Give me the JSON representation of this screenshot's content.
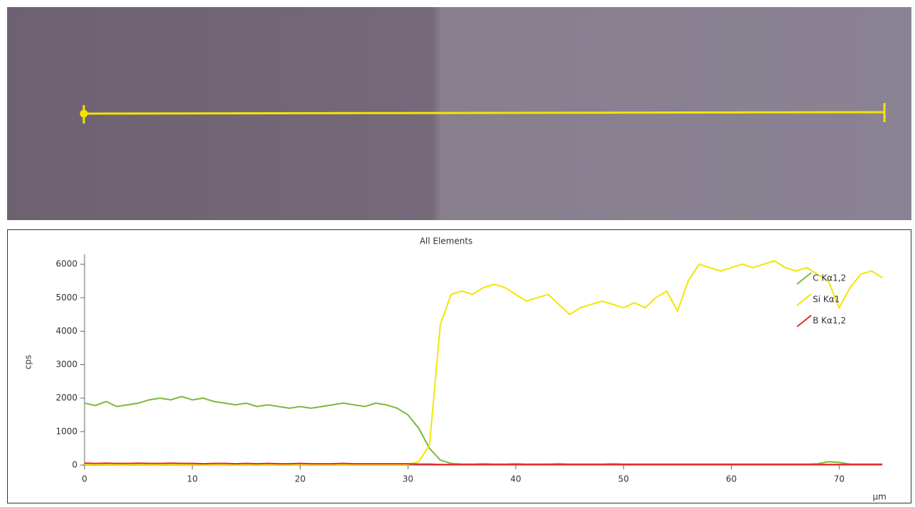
{
  "chart_data": {
    "type": "line",
    "title": "All Elements",
    "x_label": "µm",
    "y_label": "cps",
    "x": [
      0,
      1,
      2,
      3,
      4,
      5,
      6,
      7,
      8,
      9,
      10,
      11,
      12,
      13,
      14,
      15,
      16,
      17,
      18,
      19,
      20,
      21,
      22,
      23,
      24,
      25,
      26,
      27,
      28,
      29,
      30,
      31,
      32,
      33,
      34,
      35,
      36,
      37,
      38,
      39,
      40,
      41,
      42,
      43,
      44,
      45,
      46,
      47,
      48,
      49,
      50,
      51,
      52,
      53,
      54,
      55,
      56,
      57,
      58,
      59,
      60,
      61,
      62,
      63,
      64,
      65,
      66,
      67,
      68,
      69,
      70,
      71,
      72,
      73,
      74
    ],
    "series": [
      {
        "name": "C Kα1,2",
        "color": "#7ab83a",
        "values": [
          1850,
          1780,
          1900,
          1750,
          1800,
          1850,
          1950,
          2000,
          1950,
          2050,
          1950,
          2000,
          1900,
          1850,
          1800,
          1850,
          1750,
          1800,
          1750,
          1700,
          1750,
          1700,
          1750,
          1800,
          1850,
          1800,
          1750,
          1850,
          1800,
          1700,
          1500,
          1100,
          500,
          150,
          50,
          30,
          30,
          40,
          30,
          30,
          40,
          30,
          30,
          30,
          40,
          30,
          30,
          30,
          30,
          40,
          30,
          30,
          30,
          30,
          30,
          30,
          30,
          30,
          30,
          30,
          30,
          30,
          30,
          30,
          30,
          30,
          30,
          30,
          40,
          100,
          80,
          30,
          30,
          30,
          30
        ]
      },
      {
        "name": "Si Kα1",
        "color": "#f2e600",
        "values": [
          20,
          20,
          20,
          20,
          20,
          20,
          20,
          20,
          20,
          20,
          20,
          20,
          20,
          20,
          20,
          20,
          20,
          20,
          20,
          20,
          20,
          20,
          20,
          20,
          20,
          20,
          20,
          20,
          20,
          20,
          20,
          100,
          600,
          4200,
          5100,
          5200,
          5100,
          5300,
          5400,
          5300,
          5100,
          4900,
          5000,
          5100,
          4800,
          4500,
          4700,
          4800,
          4900,
          4800,
          4700,
          4850,
          4700,
          5000,
          5200,
          4600,
          5500,
          6000,
          5900,
          5800,
          5900,
          6000,
          5900,
          6000,
          6100,
          5900,
          5800,
          5900,
          5700,
          5500,
          4700,
          5300,
          5700,
          5800,
          5600
        ]
      },
      {
        "name": "B Kα1,2",
        "color": "#e8282a",
        "values": [
          60,
          50,
          60,
          50,
          50,
          60,
          50,
          50,
          60,
          50,
          50,
          40,
          50,
          50,
          40,
          50,
          40,
          50,
          40,
          40,
          50,
          40,
          40,
          40,
          50,
          40,
          40,
          40,
          40,
          40,
          40,
          30,
          30,
          20,
          20,
          20,
          20,
          20,
          20,
          20,
          20,
          20,
          20,
          20,
          20,
          20,
          20,
          20,
          20,
          20,
          20,
          20,
          20,
          20,
          20,
          20,
          20,
          20,
          20,
          20,
          20,
          20,
          20,
          20,
          20,
          20,
          20,
          20,
          20,
          20,
          20,
          20,
          20,
          20,
          20
        ]
      }
    ],
    "xlim": [
      0,
      74
    ],
    "xticks": [
      0,
      10,
      20,
      30,
      40,
      50,
      60,
      70
    ],
    "ylim": [
      0,
      6300
    ],
    "yticks": [
      0,
      1000,
      2000,
      3000,
      4000,
      5000,
      6000
    ],
    "grid": false,
    "legend": "upper right"
  }
}
